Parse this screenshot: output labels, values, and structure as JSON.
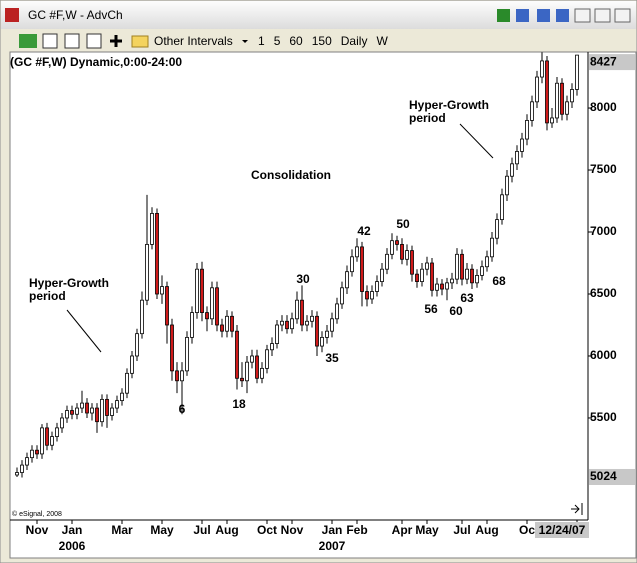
{
  "window_title": "GC #F,W - AdvCh",
  "toolbar": {
    "interval_menu": "Other Intervals",
    "intervals": [
      "1",
      "5",
      "60",
      "150",
      "Daily",
      "W"
    ]
  },
  "chart_data": {
    "type": "candlestick",
    "title": "(GC #F,W) Dynamic,0:00-24:00",
    "copyright": "© eSignal, 2008",
    "up_color": "#ffffff",
    "down_color": "#d01a1a",
    "outline_color": "#000000",
    "ylim": [
      4677,
      8452
    ],
    "yticks": [
      5500,
      6000,
      6500,
      7000,
      7500,
      8000
    ],
    "last_price": 8427,
    "low_price": 5024,
    "annotations": [
      [
        "Hyper-Growth",
        "period"
      ],
      [
        "Consolidation"
      ],
      [
        "Hyper-Growth",
        "period"
      ]
    ],
    "wave_labels": [
      "6",
      "18",
      "30",
      "35",
      "42",
      "50",
      "56",
      "60",
      "63",
      "68"
    ],
    "categories": [
      null,
      null,
      null,
      null,
      "Nov",
      null,
      null,
      null,
      null,
      null,
      null,
      "Jan",
      null,
      null,
      null,
      null,
      null,
      null,
      null,
      null,
      null,
      "Mar",
      null,
      null,
      null,
      null,
      null,
      null,
      null,
      "May",
      null,
      null,
      null,
      null,
      null,
      null,
      null,
      "Jul",
      null,
      null,
      null,
      null,
      "Aug",
      null,
      null,
      null,
      null,
      null,
      null,
      null,
      "Oct",
      null,
      null,
      null,
      null,
      "Nov",
      null,
      null,
      null,
      null,
      null,
      null,
      null,
      "Jan",
      null,
      null,
      null,
      null,
      "Feb",
      null,
      null,
      null,
      null,
      null,
      null,
      null,
      null,
      "Apr",
      null,
      null,
      null,
      null,
      "May",
      null,
      null,
      null,
      null,
      null,
      null,
      "Jul",
      null,
      null,
      null,
      null,
      "Aug",
      null,
      null,
      null,
      null,
      null,
      null,
      null,
      "Oc",
      null,
      null,
      null,
      null,
      null,
      null,
      null,
      null,
      null,
      "12/24/07"
    ],
    "years": [
      null,
      null,
      null,
      null,
      null,
      null,
      null,
      null,
      null,
      null,
      null,
      "2006",
      null,
      null,
      null,
      null,
      null,
      null,
      null,
      null,
      null,
      null,
      null,
      null,
      null,
      null,
      null,
      null,
      null,
      null,
      null,
      null,
      null,
      null,
      null,
      null,
      null,
      null,
      null,
      null,
      null,
      null,
      null,
      null,
      null,
      null,
      null,
      null,
      null,
      null,
      null,
      null,
      null,
      null,
      null,
      null,
      null,
      null,
      null,
      null,
      null,
      null,
      null,
      "2007",
      null,
      null,
      null,
      null,
      null,
      null,
      null,
      null,
      null,
      null,
      null,
      null,
      null,
      null,
      null,
      null,
      null,
      null,
      null,
      null,
      null,
      null,
      null,
      null,
      null,
      null,
      null,
      null,
      null,
      null,
      null,
      null,
      null,
      null,
      null,
      null,
      null,
      null,
      null,
      null,
      null,
      null,
      null,
      null,
      null,
      null,
      null,
      null,
      null
    ],
    "open": [
      5040,
      5060,
      5120,
      5180,
      5240,
      5210,
      5420,
      5280,
      5350,
      5420,
      5500,
      5560,
      5530,
      5580,
      5620,
      5540,
      5580,
      5470,
      5650,
      5520,
      5580,
      5640,
      5700,
      5860,
      6000,
      6180,
      6450,
      6900,
      7150,
      6500,
      6560,
      6250,
      5880,
      5800,
      5880,
      6150,
      6350,
      6700,
      6350,
      6300,
      6550,
      6250,
      6200,
      6320,
      6200,
      5820,
      5800,
      5950,
      6000,
      5820,
      5900,
      6050,
      6100,
      6250,
      6280,
      6220,
      6300,
      6450,
      6250,
      6280,
      6320,
      6080,
      6150,
      6200,
      6300,
      6420,
      6550,
      6680,
      6800,
      6880,
      6520,
      6460,
      6520,
      6600,
      6700,
      6820,
      6930,
      6900,
      6780,
      6850,
      6660,
      6600,
      6700,
      6750,
      6530,
      6580,
      6540,
      6590,
      6620,
      6820,
      6620,
      6700,
      6590,
      6650,
      6720,
      6800,
      6950,
      7100,
      7300,
      7450,
      7550,
      7650,
      7750,
      7900,
      8050,
      8250,
      8380,
      7880,
      7920,
      8200,
      7950,
      8050,
      8150
    ],
    "high": [
      5100,
      5160,
      5220,
      5280,
      5280,
      5450,
      5460,
      5390,
      5460,
      5540,
      5600,
      5600,
      5620,
      5720,
      5660,
      5620,
      5620,
      5690,
      5690,
      5620,
      5680,
      5740,
      5900,
      6040,
      6220,
      6520,
      7300,
      7200,
      7190,
      6650,
      6600,
      6300,
      5950,
      5950,
      6200,
      6400,
      6750,
      6760,
      6400,
      6600,
      6600,
      6300,
      6370,
      6360,
      6250,
      5950,
      6000,
      6050,
      6050,
      5950,
      6090,
      6150,
      6290,
      6330,
      6330,
      6350,
      6520,
      6570,
      6330,
      6370,
      6360,
      6200,
      6250,
      6350,
      6470,
      6600,
      6730,
      6860,
      6950,
      6920,
      6570,
      6570,
      6650,
      6750,
      6870,
      6990,
      6970,
      6950,
      6900,
      6890,
      6700,
      6750,
      6800,
      6790,
      6630,
      6620,
      6630,
      6670,
      6870,
      6860,
      6750,
      6740,
      6700,
      6770,
      6850,
      7000,
      7150,
      7350,
      7500,
      7600,
      7700,
      7800,
      7950,
      8100,
      8300,
      8450,
      8420,
      8000,
      8250,
      8240,
      8100,
      8200,
      8427
    ],
    "low": [
      5024,
      5020,
      5080,
      5140,
      5170,
      5170,
      5240,
      5240,
      5310,
      5380,
      5460,
      5490,
      5490,
      5540,
      5500,
      5480,
      5380,
      5430,
      5420,
      5480,
      5540,
      5600,
      5660,
      5820,
      5960,
      6140,
      6410,
      6860,
      6460,
      6420,
      6100,
      5800,
      5700,
      5530,
      5840,
      6100,
      6300,
      6280,
      6200,
      6250,
      6200,
      6150,
      6150,
      6150,
      5730,
      5750,
      5700,
      5900,
      5780,
      5780,
      5860,
      6000,
      6060,
      6200,
      6180,
      6180,
      6260,
      6200,
      6200,
      6230,
      6000,
      6030,
      6100,
      6150,
      6260,
      6380,
      6500,
      6640,
      6760,
      6400,
      6400,
      6420,
      6480,
      6560,
      6660,
      6780,
      6850,
      6740,
      6730,
      6600,
      6550,
      6560,
      6650,
      6480,
      6480,
      6490,
      6450,
      6540,
      6580,
      6570,
      6580,
      6540,
      6550,
      6610,
      6680,
      6760,
      6900,
      7060,
      7250,
      7400,
      7500,
      7600,
      7700,
      7850,
      8000,
      8200,
      7820,
      7840,
      7880,
      7900,
      7900,
      8000,
      8100
    ],
    "close": [
      5060,
      5120,
      5180,
      5240,
      5210,
      5420,
      5280,
      5350,
      5420,
      5500,
      5560,
      5530,
      5580,
      5620,
      5540,
      5580,
      5470,
      5650,
      5520,
      5580,
      5640,
      5700,
      5860,
      6000,
      6180,
      6450,
      6900,
      7150,
      6500,
      6560,
      6250,
      5880,
      5800,
      5880,
      6150,
      6350,
      6700,
      6350,
      6300,
      6550,
      6250,
      6200,
      6320,
      6200,
      5820,
      5800,
      5950,
      6000,
      5820,
      5900,
      6050,
      6100,
      6250,
      6280,
      6220,
      6300,
      6450,
      6250,
      6280,
      6320,
      6080,
      6150,
      6200,
      6300,
      6420,
      6550,
      6680,
      6800,
      6880,
      6520,
      6460,
      6520,
      6600,
      6700,
      6820,
      6930,
      6900,
      6780,
      6850,
      6660,
      6600,
      6700,
      6750,
      6530,
      6580,
      6540,
      6590,
      6620,
      6820,
      6620,
      6700,
      6590,
      6650,
      6720,
      6800,
      6950,
      7100,
      7300,
      7450,
      7550,
      7650,
      7750,
      7900,
      8050,
      8250,
      8380,
      7880,
      7920,
      8200,
      7950,
      8050,
      8150,
      8427
    ]
  }
}
